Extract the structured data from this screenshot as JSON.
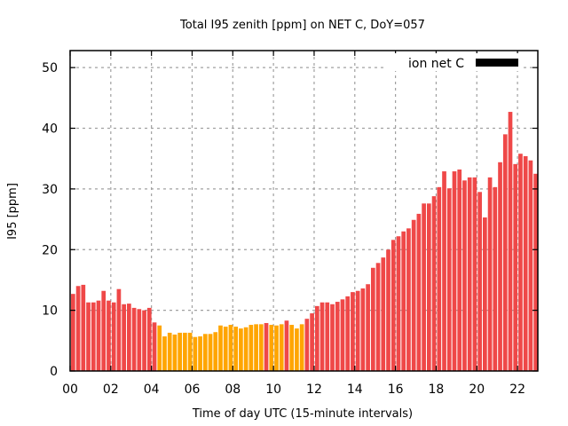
{
  "chart_data": {
    "type": "bar",
    "title": "Total I95 zenith [ppm] on NET C, DoY=057",
    "xlabel": "Time of day UTC (15-minute intervals)",
    "ylabel": "I95 [ppm]",
    "ylim": [
      0,
      52.8
    ],
    "yticks": [
      0,
      10,
      20,
      30,
      40,
      50
    ],
    "xticks": [
      {
        "hour": 0,
        "label": "00"
      },
      {
        "hour": 2,
        "label": "02"
      },
      {
        "hour": 4,
        "label": "04"
      },
      {
        "hour": 6,
        "label": "06"
      },
      {
        "hour": 8,
        "label": "08"
      },
      {
        "hour": 10,
        "label": "10"
      },
      {
        "hour": 12,
        "label": "12"
      },
      {
        "hour": 14,
        "label": "14"
      },
      {
        "hour": 16,
        "label": "16"
      },
      {
        "hour": 18,
        "label": "18"
      },
      {
        "hour": 20,
        "label": "20"
      },
      {
        "hour": 22,
        "label": "22"
      }
    ],
    "xlim_hours": [
      0,
      23
    ],
    "interval_minutes": 15,
    "grid": true,
    "legend": {
      "label": "ion net C",
      "color": "#000000",
      "placement": "top-right"
    },
    "colors": {
      "high": "#ef4848",
      "low": "#ffa500",
      "axis": "#000000",
      "grid": "#a0a0a0"
    },
    "values": [
      12.7,
      14.0,
      14.2,
      11.3,
      11.3,
      11.6,
      13.2,
      11.6,
      11.3,
      13.5,
      11.0,
      11.1,
      10.4,
      10.2,
      10.0,
      10.4,
      8.0,
      7.5,
      5.7,
      6.3,
      6.0,
      6.3,
      6.3,
      6.3,
      5.6,
      5.7,
      6.1,
      6.1,
      6.4,
      7.5,
      7.3,
      7.6,
      7.3,
      7.0,
      7.2,
      7.6,
      7.7,
      7.7,
      7.9,
      7.6,
      7.5,
      7.7,
      8.3,
      7.6,
      7.0,
      7.7,
      8.6,
      9.5,
      10.7,
      11.3,
      11.3,
      11.0,
      11.4,
      11.8,
      12.3,
      13.0,
      13.2,
      13.6,
      14.3,
      17.0,
      17.8,
      18.7,
      20.0,
      21.6,
      22.2,
      23.0,
      23.5,
      24.9,
      25.9,
      27.6,
      27.6,
      28.8,
      30.3,
      32.9,
      30.1,
      32.9,
      33.2,
      31.4,
      31.9,
      31.9,
      29.5,
      25.3,
      31.9,
      30.3,
      34.4,
      39.0,
      42.7,
      34.1,
      35.8,
      35.4,
      34.7,
      32.5
    ],
    "bar_class": [
      "high",
      "high",
      "high",
      "high",
      "high",
      "high",
      "high",
      "high",
      "high",
      "high",
      "high",
      "high",
      "high",
      "high",
      "high",
      "high",
      "high",
      "low",
      "low",
      "low",
      "low",
      "low",
      "low",
      "low",
      "low",
      "low",
      "low",
      "low",
      "low",
      "low",
      "low",
      "low",
      "low",
      "low",
      "low",
      "low",
      "low",
      "low",
      "high",
      "low",
      "low",
      "low",
      "high",
      "low",
      "low",
      "low",
      "high",
      "high",
      "high",
      "high",
      "high",
      "high",
      "high",
      "high",
      "high",
      "high",
      "high",
      "high",
      "high",
      "high",
      "high",
      "high",
      "high",
      "high",
      "high",
      "high",
      "high",
      "high",
      "high",
      "high",
      "high",
      "high",
      "high",
      "high",
      "high",
      "high",
      "high",
      "high",
      "high",
      "high",
      "high",
      "high",
      "high",
      "high",
      "high",
      "high",
      "high",
      "high",
      "high",
      "high",
      "high",
      "high"
    ]
  }
}
